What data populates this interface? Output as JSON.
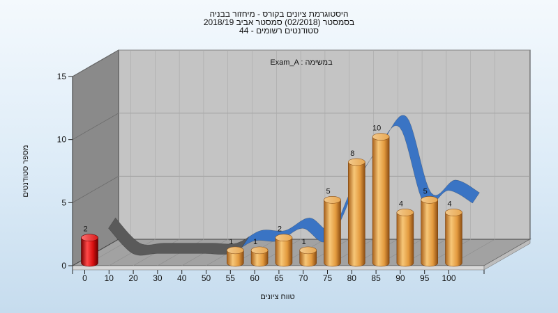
{
  "chart_data": {
    "type": "bar",
    "title_lines": [
      "היסטוגרמת ציונים בקורס - מיחזור בבניה",
      "בסמסטר  (02/2018)  סמסטר אביב 2018/19",
      "סטודנטים רשומים - 44"
    ],
    "annotation": "Exam_A : במשימה",
    "xlabel": "טווח ציונים",
    "ylabel": "מספר סטודנטים",
    "categories": [
      "0",
      "10",
      "20",
      "30",
      "40",
      "50",
      "55",
      "60",
      "65",
      "70",
      "75",
      "80",
      "85",
      "90",
      "95",
      "100"
    ],
    "values": [
      2,
      0,
      0,
      0,
      0,
      0,
      1,
      1,
      2,
      1,
      5,
      8,
      10,
      4,
      5,
      4
    ],
    "ylim": [
      0,
      15
    ],
    "yticks": [
      0,
      5,
      10,
      15
    ],
    "highlight_category": "0",
    "colors": {
      "bar": "#e8a44a",
      "bar_highlight": "#e01818",
      "curve": "#3a74c4",
      "curve_shadow": "#5a5a5a",
      "back_wall": "#c4c4c4",
      "side_wall": "#8a8a8a",
      "floor": "#a2a2a2"
    }
  }
}
